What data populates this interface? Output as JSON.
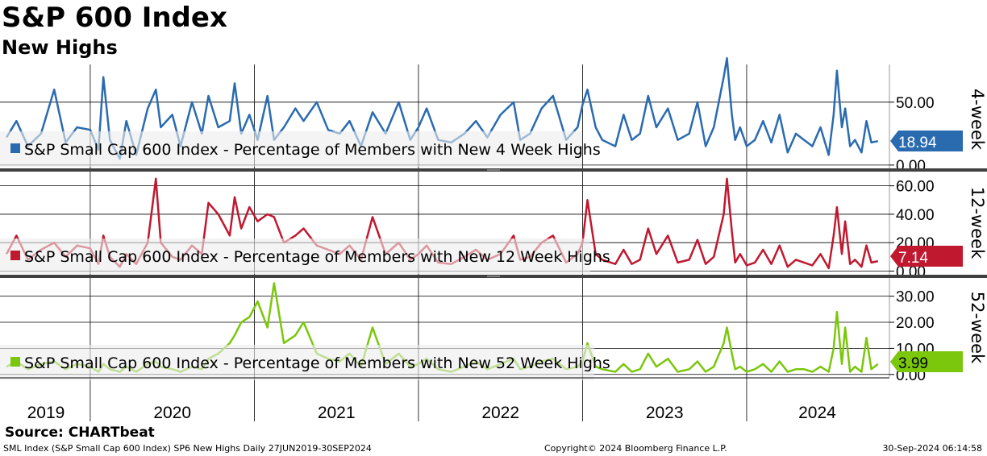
{
  "title": "S&P 600 Index",
  "subtitle": "New Highs",
  "source": "Source: CHARTbeat",
  "footer": {
    "left": "SML Index (S&P Small Cap 600 Index) SP6 New Highs  Daily 27JUN2019-30SEP2024",
    "center": "Copyright© 2024 Bloomberg Finance L.P.",
    "right": "30-Sep-2024 06:14:58"
  },
  "colors": {
    "week4": "#2a6bb0",
    "week12": "#c0182f",
    "week52": "#7ac70c",
    "grid": "#000000",
    "separator": "#404040",
    "legend_bg": "#ececec"
  },
  "chart_data": [
    {
      "type": "line",
      "panel_label": "4-week",
      "legend": "S&P Small Cap 600 Index - Percentage of Members with New 4 Week Highs",
      "last_value": "18.94",
      "ylim": [
        -2,
        80
      ],
      "yticks": [
        0,
        50
      ],
      "ytick_labels": [
        "0.00",
        "50.00"
      ],
      "x": [
        2019.49,
        2019.55,
        2019.62,
        2019.7,
        2019.78,
        2019.85,
        2019.92,
        2020.0,
        2020.05,
        2020.08,
        2020.12,
        2020.18,
        2020.22,
        2020.28,
        2020.35,
        2020.4,
        2020.43,
        2020.5,
        2020.55,
        2020.62,
        2020.68,
        2020.72,
        2020.78,
        2020.85,
        2020.88,
        2020.92,
        2020.97,
        2021.02,
        2021.08,
        2021.12,
        2021.18,
        2021.25,
        2021.3,
        2021.38,
        2021.45,
        2021.52,
        2021.58,
        2021.65,
        2021.72,
        2021.8,
        2021.88,
        2021.95,
        2022.0,
        2022.05,
        2022.12,
        2022.2,
        2022.28,
        2022.35,
        2022.42,
        2022.5,
        2022.58,
        2022.62,
        2022.68,
        2022.75,
        2022.82,
        2022.9,
        2022.97,
        2023.0,
        2023.03,
        2023.08,
        2023.12,
        2023.2,
        2023.25,
        2023.3,
        2023.35,
        2023.4,
        2023.45,
        2023.52,
        2023.58,
        2023.65,
        2023.7,
        2023.75,
        2023.8,
        2023.86,
        2023.88,
        2023.91,
        2023.93,
        2023.96,
        2024.0,
        2024.05,
        2024.1,
        2024.15,
        2024.2,
        2024.25,
        2024.3,
        2024.35,
        2024.4,
        2024.45,
        2024.5,
        2024.53,
        2024.55,
        2024.58,
        2024.6,
        2024.63,
        2024.66,
        2024.7,
        2024.73,
        2024.76,
        2024.8
      ],
      "values": [
        22,
        35,
        15,
        25,
        60,
        18,
        30,
        28,
        12,
        70,
        20,
        5,
        35,
        8,
        45,
        60,
        30,
        40,
        15,
        50,
        25,
        55,
        30,
        35,
        65,
        25,
        40,
        20,
        55,
        20,
        30,
        45,
        35,
        50,
        28,
        25,
        35,
        15,
        42,
        25,
        50,
        20,
        30,
        45,
        20,
        18,
        25,
        35,
        22,
        40,
        50,
        20,
        25,
        45,
        55,
        20,
        30,
        48,
        60,
        30,
        20,
        15,
        40,
        20,
        25,
        55,
        30,
        45,
        20,
        25,
        50,
        15,
        30,
        70,
        85,
        40,
        20,
        30,
        15,
        20,
        35,
        18,
        40,
        10,
        25,
        20,
        15,
        30,
        8,
        40,
        75,
        30,
        45,
        15,
        20,
        10,
        35,
        18,
        19
      ]
    },
    {
      "type": "line",
      "panel_label": "12-week",
      "legend": "S&P Small Cap 600 Index - Percentage of Members with New 12 Week Highs",
      "last_value": "7.14",
      "ylim": [
        -2,
        70
      ],
      "yticks": [
        0,
        20,
        40,
        60
      ],
      "ytick_labels": [
        "0.00",
        "20.00",
        "40.00",
        "60.00"
      ],
      "x": [
        2019.49,
        2019.55,
        2019.62,
        2019.7,
        2019.78,
        2019.85,
        2019.92,
        2020.0,
        2020.05,
        2020.08,
        2020.12,
        2020.18,
        2020.22,
        2020.28,
        2020.35,
        2020.4,
        2020.43,
        2020.5,
        2020.55,
        2020.62,
        2020.68,
        2020.72,
        2020.78,
        2020.85,
        2020.88,
        2020.92,
        2020.97,
        2021.02,
        2021.08,
        2021.12,
        2021.18,
        2021.25,
        2021.3,
        2021.38,
        2021.45,
        2021.52,
        2021.58,
        2021.65,
        2021.72,
        2021.8,
        2021.88,
        2021.95,
        2022.0,
        2022.05,
        2022.12,
        2022.2,
        2022.28,
        2022.35,
        2022.42,
        2022.5,
        2022.58,
        2022.62,
        2022.68,
        2022.75,
        2022.82,
        2022.9,
        2022.97,
        2023.0,
        2023.03,
        2023.08,
        2023.12,
        2023.2,
        2023.25,
        2023.3,
        2023.35,
        2023.4,
        2023.45,
        2023.52,
        2023.58,
        2023.65,
        2023.7,
        2023.75,
        2023.8,
        2023.86,
        2023.88,
        2023.91,
        2023.93,
        2023.96,
        2024.0,
        2024.05,
        2024.1,
        2024.15,
        2024.2,
        2024.25,
        2024.3,
        2024.35,
        2024.4,
        2024.45,
        2024.5,
        2024.53,
        2024.55,
        2024.58,
        2024.6,
        2024.63,
        2024.66,
        2024.7,
        2024.73,
        2024.76,
        2024.8
      ],
      "values": [
        12,
        25,
        8,
        15,
        20,
        10,
        18,
        16,
        5,
        25,
        10,
        3,
        12,
        5,
        20,
        65,
        20,
        10,
        8,
        18,
        12,
        48,
        40,
        25,
        52,
        30,
        45,
        35,
        40,
        38,
        20,
        25,
        30,
        18,
        15,
        12,
        18,
        8,
        38,
        12,
        20,
        8,
        12,
        18,
        6,
        5,
        10,
        15,
        8,
        12,
        25,
        8,
        10,
        20,
        25,
        6,
        12,
        20,
        50,
        12,
        8,
        5,
        15,
        5,
        8,
        30,
        12,
        25,
        6,
        8,
        22,
        5,
        10,
        40,
        65,
        28,
        6,
        12,
        4,
        6,
        15,
        5,
        18,
        3,
        8,
        6,
        4,
        12,
        2,
        25,
        45,
        12,
        35,
        5,
        8,
        3,
        18,
        6,
        7
      ]
    },
    {
      "type": "line",
      "panel_label": "52-week",
      "legend": "S&P Small Cap 600 Index - Percentage of Members with New 52 Week Highs",
      "last_value": "3.99",
      "ylim": [
        -1,
        37
      ],
      "yticks": [
        0,
        10,
        20,
        30
      ],
      "ytick_labels": [
        "0.00",
        "10.00",
        "20.00",
        "30.00"
      ],
      "x": [
        2019.49,
        2019.55,
        2019.62,
        2019.7,
        2019.78,
        2019.85,
        2019.92,
        2020.0,
        2020.05,
        2020.08,
        2020.12,
        2020.18,
        2020.22,
        2020.28,
        2020.35,
        2020.4,
        2020.43,
        2020.5,
        2020.55,
        2020.62,
        2020.68,
        2020.72,
        2020.78,
        2020.85,
        2020.88,
        2020.92,
        2020.97,
        2021.02,
        2021.08,
        2021.12,
        2021.18,
        2021.25,
        2021.3,
        2021.38,
        2021.45,
        2021.52,
        2021.58,
        2021.65,
        2021.72,
        2021.8,
        2021.88,
        2021.95,
        2022.0,
        2022.05,
        2022.12,
        2022.2,
        2022.28,
        2022.35,
        2022.42,
        2022.5,
        2022.58,
        2022.62,
        2022.68,
        2022.75,
        2022.82,
        2022.9,
        2022.97,
        2023.0,
        2023.03,
        2023.08,
        2023.12,
        2023.2,
        2023.25,
        2023.3,
        2023.35,
        2023.4,
        2023.45,
        2023.52,
        2023.58,
        2023.65,
        2023.7,
        2023.75,
        2023.8,
        2023.86,
        2023.88,
        2023.91,
        2023.93,
        2023.96,
        2024.0,
        2024.05,
        2024.1,
        2024.15,
        2024.2,
        2024.25,
        2024.3,
        2024.35,
        2024.4,
        2024.45,
        2024.5,
        2024.53,
        2024.55,
        2024.58,
        2024.6,
        2024.63,
        2024.66,
        2024.7,
        2024.73,
        2024.76,
        2024.8
      ],
      "values": [
        3,
        5,
        2,
        4,
        5,
        2,
        4,
        3,
        1,
        4,
        2,
        1,
        3,
        1,
        4,
        5,
        3,
        2,
        1,
        3,
        2,
        6,
        8,
        12,
        15,
        20,
        22,
        28,
        18,
        35,
        12,
        15,
        20,
        8,
        6,
        5,
        8,
        3,
        18,
        4,
        8,
        3,
        4,
        6,
        2,
        1,
        3,
        5,
        2,
        4,
        6,
        2,
        3,
        5,
        6,
        2,
        3,
        5,
        12,
        3,
        2,
        1,
        4,
        1,
        2,
        8,
        3,
        6,
        1,
        2,
        5,
        1,
        3,
        12,
        18,
        8,
        2,
        3,
        1,
        2,
        4,
        1,
        5,
        1,
        2,
        2,
        1,
        3,
        1,
        10,
        24,
        4,
        18,
        1,
        3,
        1,
        14,
        2,
        4
      ]
    }
  ],
  "x_axis": {
    "range": [
      2019.45,
      2024.87
    ],
    "year_labels": [
      "2019",
      "2020",
      "2021",
      "2022",
      "2023",
      "2024"
    ],
    "year_label_positions": [
      2019.73,
      2020.5,
      2021.5,
      2022.5,
      2023.5,
      2024.43
    ],
    "year_boundaries": [
      2020.0,
      2021.0,
      2022.0,
      2023.0,
      2024.0
    ]
  }
}
